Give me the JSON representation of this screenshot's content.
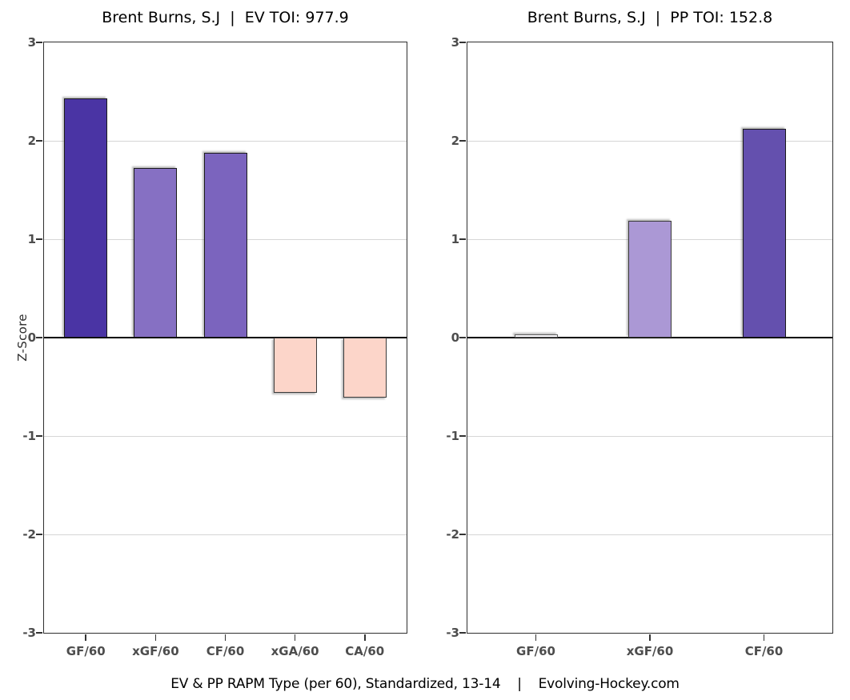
{
  "caption": "EV & PP RAPM Type (per 60), Standardized, 13-14    |    Evolving-Hockey.com",
  "y_axis": {
    "label": "Z-Score",
    "tick_labels": [
      "3",
      "2",
      "1",
      "0",
      "-1",
      "-2",
      "-3"
    ],
    "range": [
      -3,
      3
    ]
  },
  "styles": {
    "grid_color": "#d6d6d6",
    "axis_color": "#333333",
    "tick_label_color": "#4d4d4d",
    "zero_line_color": "#000000",
    "panel_background": "#ffffff"
  },
  "chart_data": [
    {
      "type": "bar",
      "panel": "EV",
      "title": "Brent Burns, S.J  |  EV TOI: 977.9",
      "categories": [
        "GF/60",
        "xGF/60",
        "CF/60",
        "xGA/60",
        "CA/60"
      ],
      "values": [
        2.43,
        1.72,
        1.88,
        -0.56,
        -0.61
      ],
      "bar_colors": [
        "#4a34a4",
        "#8670c3",
        "#7b64be",
        "#fcd5c9",
        "#fcd5c9"
      ],
      "bar_border_colors": [
        "#1a1a1a",
        "#1a1a1a",
        "#1a1a1a",
        "#3a3a3a",
        "#3a3a3a"
      ],
      "xlabel": "",
      "ylabel": "Z-Score",
      "ylim": [
        -3,
        3
      ],
      "yticks": [
        3,
        2,
        1,
        0,
        -1,
        -2,
        -3
      ],
      "gridlines_at": [
        2,
        1,
        -1,
        -2
      ],
      "grid": true,
      "legend": false
    },
    {
      "type": "bar",
      "panel": "PP",
      "title": "Brent Burns, S.J  |  PP TOI: 152.8",
      "categories": [
        "GF/60",
        "xGF/60",
        "CF/60"
      ],
      "values": [
        0.03,
        1.19,
        2.12
      ],
      "bar_colors": [
        "#fbfafd",
        "#ab98d5",
        "#6450ae"
      ],
      "bar_border_colors": [
        "#5e5e5e",
        "#3a3a3a",
        "#1a1a1a"
      ],
      "xlabel": "",
      "ylabel": "",
      "ylim": [
        -3,
        3
      ],
      "yticks": [
        3,
        2,
        1,
        0,
        -1,
        -2,
        -3
      ],
      "gridlines_at": [
        2,
        1,
        -1,
        -2
      ],
      "grid": true,
      "legend": false
    }
  ]
}
